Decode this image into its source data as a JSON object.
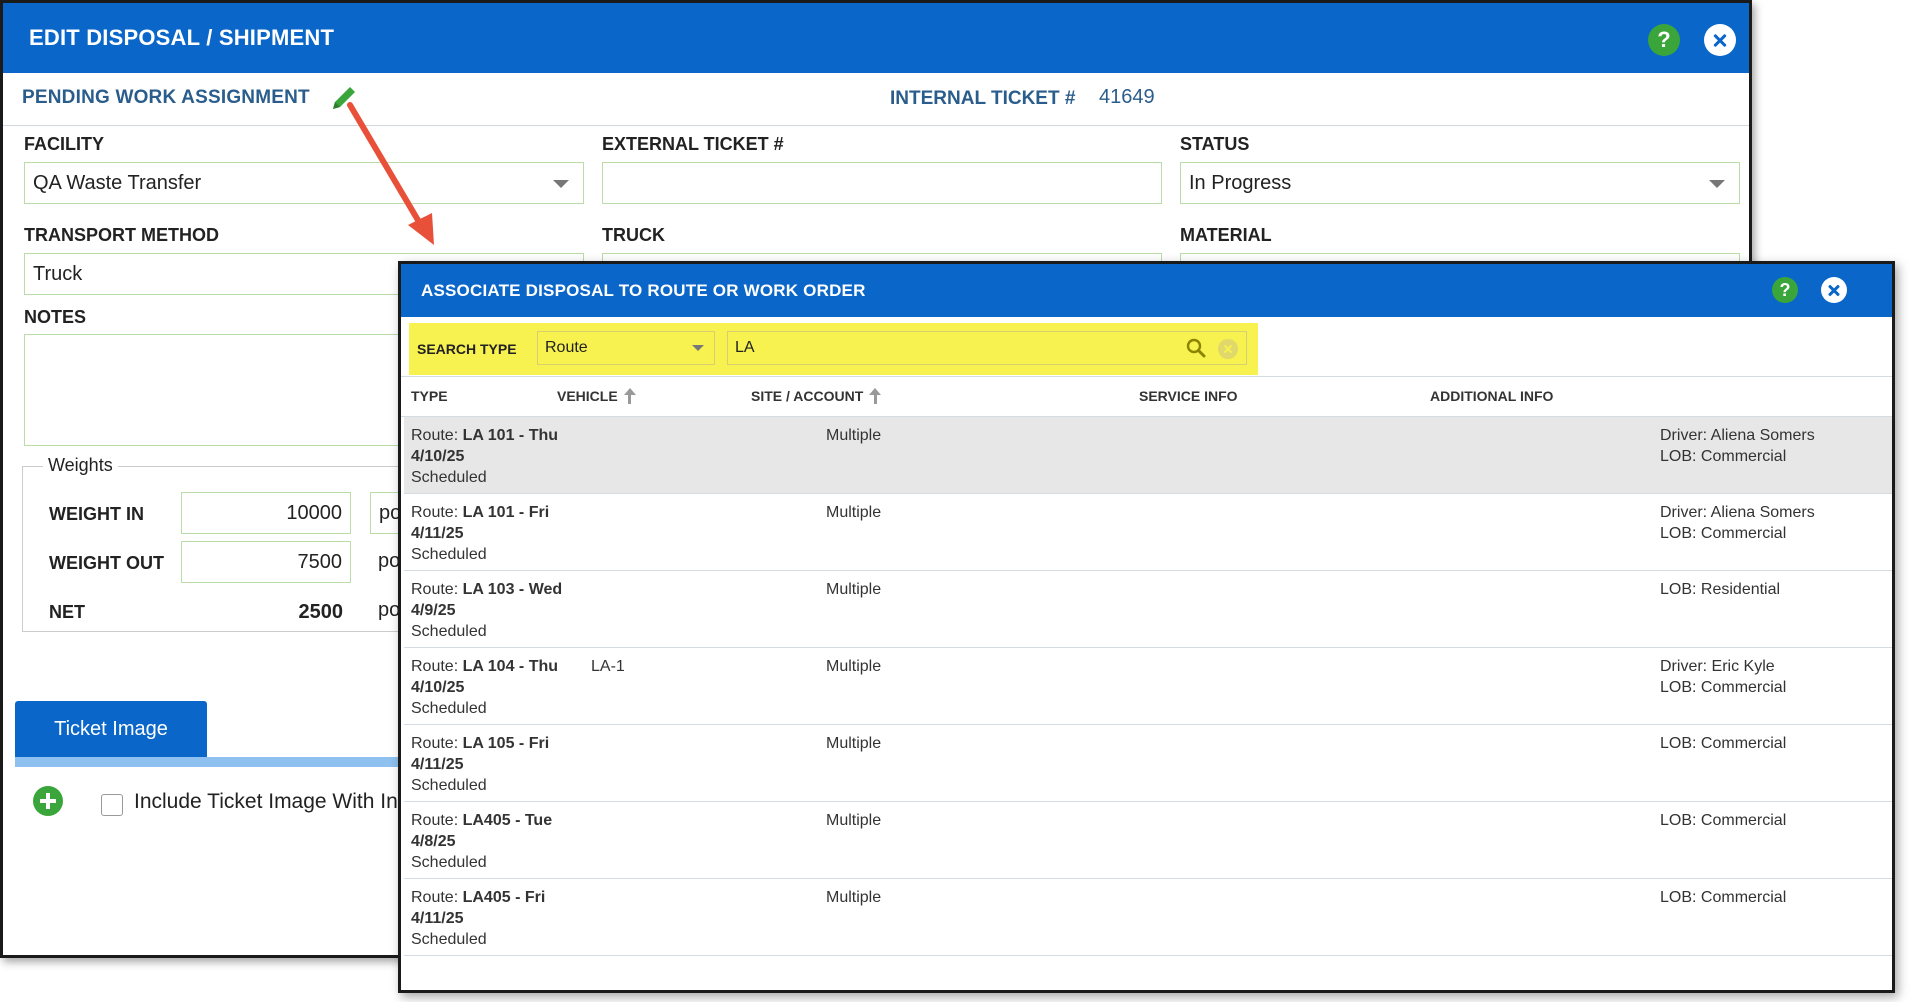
{
  "main_dialog": {
    "title": "EDIT DISPOSAL / SHIPMENT",
    "help_label": "?",
    "status_heading": "PENDING WORK ASSIGNMENT",
    "internal_ticket_label": "INTERNAL TICKET #",
    "internal_ticket_value": "41649",
    "fields": {
      "facility_label": "FACILITY",
      "facility_value": "QA Waste Transfer",
      "external_ticket_label": "EXTERNAL TICKET #",
      "external_ticket_value": "",
      "status_label": "STATUS",
      "status_value": "In Progress",
      "transport_method_label": "TRANSPORT METHOD",
      "transport_method_value": "Truck",
      "truck_label": "TRUCK",
      "material_label": "MATERIAL",
      "notes_label": "NOTES"
    },
    "weights": {
      "legend": "Weights",
      "weight_in_label": "WEIGHT IN",
      "weight_in_value": "10000",
      "weight_out_label": "WEIGHT OUT",
      "weight_out_value": "7500",
      "net_label": "NET",
      "net_value": "2500",
      "unit_partial": "po"
    },
    "tab_label": "Ticket Image",
    "include_label": "Include Ticket Image With In"
  },
  "assoc_dialog": {
    "title": "ASSOCIATE DISPOSAL TO ROUTE OR WORK ORDER",
    "help_label": "?",
    "search": {
      "type_label": "SEARCH TYPE",
      "type_value": "Route",
      "query_value": "LA"
    },
    "columns": {
      "type": "TYPE",
      "vehicle": "VEHICLE",
      "site": "SITE / ACCOUNT",
      "service": "SERVICE INFO",
      "additional": "ADDITIONAL INFO"
    },
    "rows": [
      {
        "prefix": "Route: ",
        "route": "LA 101 - Thu",
        "date": "4/10/25",
        "status": "Scheduled",
        "vehicle": "",
        "site": "Multiple",
        "service": "",
        "info1": "Driver: Aliena Somers",
        "info2": "LOB: Commercial"
      },
      {
        "prefix": "Route: ",
        "route": "LA 101 - Fri",
        "date": "4/11/25",
        "status": "Scheduled",
        "vehicle": "",
        "site": "Multiple",
        "service": "",
        "info1": "Driver: Aliena Somers",
        "info2": "LOB: Commercial"
      },
      {
        "prefix": "Route: ",
        "route": "LA 103 - Wed",
        "date": "4/9/25",
        "status": "Scheduled",
        "vehicle": "",
        "site": "Multiple",
        "service": "",
        "info1": "LOB: Residential",
        "info2": ""
      },
      {
        "prefix": "Route: ",
        "route": "LA 104 - Thu",
        "date": "4/10/25",
        "status": "Scheduled",
        "vehicle": "LA-1",
        "site": "Multiple",
        "service": "",
        "info1": "Driver: Eric Kyle",
        "info2": "LOB: Commercial"
      },
      {
        "prefix": "Route: ",
        "route": "LA 105 - Fri",
        "date": "4/11/25",
        "status": "Scheduled",
        "vehicle": "",
        "site": "Multiple",
        "service": "",
        "info1": "LOB: Commercial",
        "info2": ""
      },
      {
        "prefix": "Route: ",
        "route": "LA405 - Tue",
        "date": "4/8/25",
        "status": "Scheduled",
        "vehicle": "",
        "site": "Multiple",
        "service": "",
        "info1": "LOB: Commercial",
        "info2": ""
      },
      {
        "prefix": "Route: ",
        "route": "LA405 - Fri",
        "date": "4/11/25",
        "status": "Scheduled",
        "vehicle": "",
        "site": "Multiple",
        "service": "",
        "info1": "LOB: Commercial",
        "info2": ""
      }
    ]
  },
  "colors": {
    "brand_blue": "#0a66c9",
    "help_green": "#3aa53a",
    "search_highlight": "#f7f24f",
    "annotation_arrow": "#e8503a"
  }
}
